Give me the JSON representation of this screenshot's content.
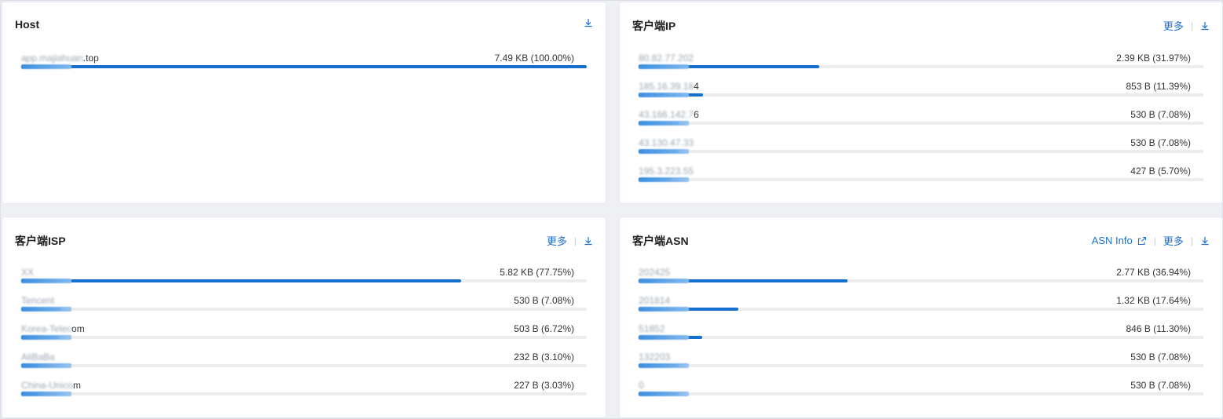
{
  "colors": {
    "accent": "#1470cc",
    "track": "#ececec",
    "link": "#1a6fd0"
  },
  "panels": {
    "host": {
      "title": "Host",
      "rows": [
        {
          "label_blur": "app.majiahuan",
          "label_tail": ".top",
          "value": "7.49 KB (100.00%)",
          "share": 1.0
        }
      ]
    },
    "client_ip": {
      "title": "客户端IP",
      "more": "更多",
      "rows": [
        {
          "label_blur": "80.82.77.202",
          "label_tail": "",
          "value": "2.39 KB (31.97%)",
          "share": 0.3197
        },
        {
          "label_blur": "185.16.39.18",
          "label_tail": "4",
          "value": "853 B (11.39%)",
          "share": 0.1139
        },
        {
          "label_blur": "43.166.142.7",
          "label_tail": "6",
          "value": "530 B (7.08%)",
          "share": 0.0708
        },
        {
          "label_blur": "43.130.47.33",
          "label_tail": "",
          "value": "530 B (7.08%)",
          "share": 0.0708
        },
        {
          "label_blur": "195.3.223.55",
          "label_tail": "",
          "value": "427 B (5.70%)",
          "share": 0.057
        }
      ]
    },
    "client_isp": {
      "title": "客户端ISP",
      "more": "更多",
      "rows": [
        {
          "label_blur": "XX",
          "label_tail": "",
          "value": "5.82 KB (77.75%)",
          "share": 0.7775
        },
        {
          "label_blur": "Tencent",
          "label_tail": "",
          "value": "530 B (7.08%)",
          "share": 0.0708
        },
        {
          "label_blur": "Korea-Telec",
          "label_tail": "om",
          "value": "503 B (6.72%)",
          "share": 0.0672
        },
        {
          "label_blur": "AliBaBa",
          "label_tail": "",
          "value": "232 B (3.10%)",
          "share": 0.031
        },
        {
          "label_blur": "China-Unico",
          "label_tail": "m",
          "value": "227 B (3.03%)",
          "share": 0.0303
        }
      ]
    },
    "client_asn": {
      "title": "客户端ASN",
      "asn_info": "ASN Info",
      "more": "更多",
      "rows": [
        {
          "label_blur": "202425",
          "label_tail": "",
          "value": "2.77 KB (36.94%)",
          "share": 0.3694
        },
        {
          "label_blur": "201814",
          "label_tail": "",
          "value": "1.32 KB (17.64%)",
          "share": 0.1764
        },
        {
          "label_blur": "51852",
          "label_tail": "",
          "value": "846 B (11.30%)",
          "share": 0.113
        },
        {
          "label_blur": "132203",
          "label_tail": "",
          "value": "530 B (7.08%)",
          "share": 0.0708
        },
        {
          "label_blur": "0",
          "label_tail": "",
          "value": "530 B (7.08%)",
          "share": 0.0708
        }
      ]
    }
  }
}
